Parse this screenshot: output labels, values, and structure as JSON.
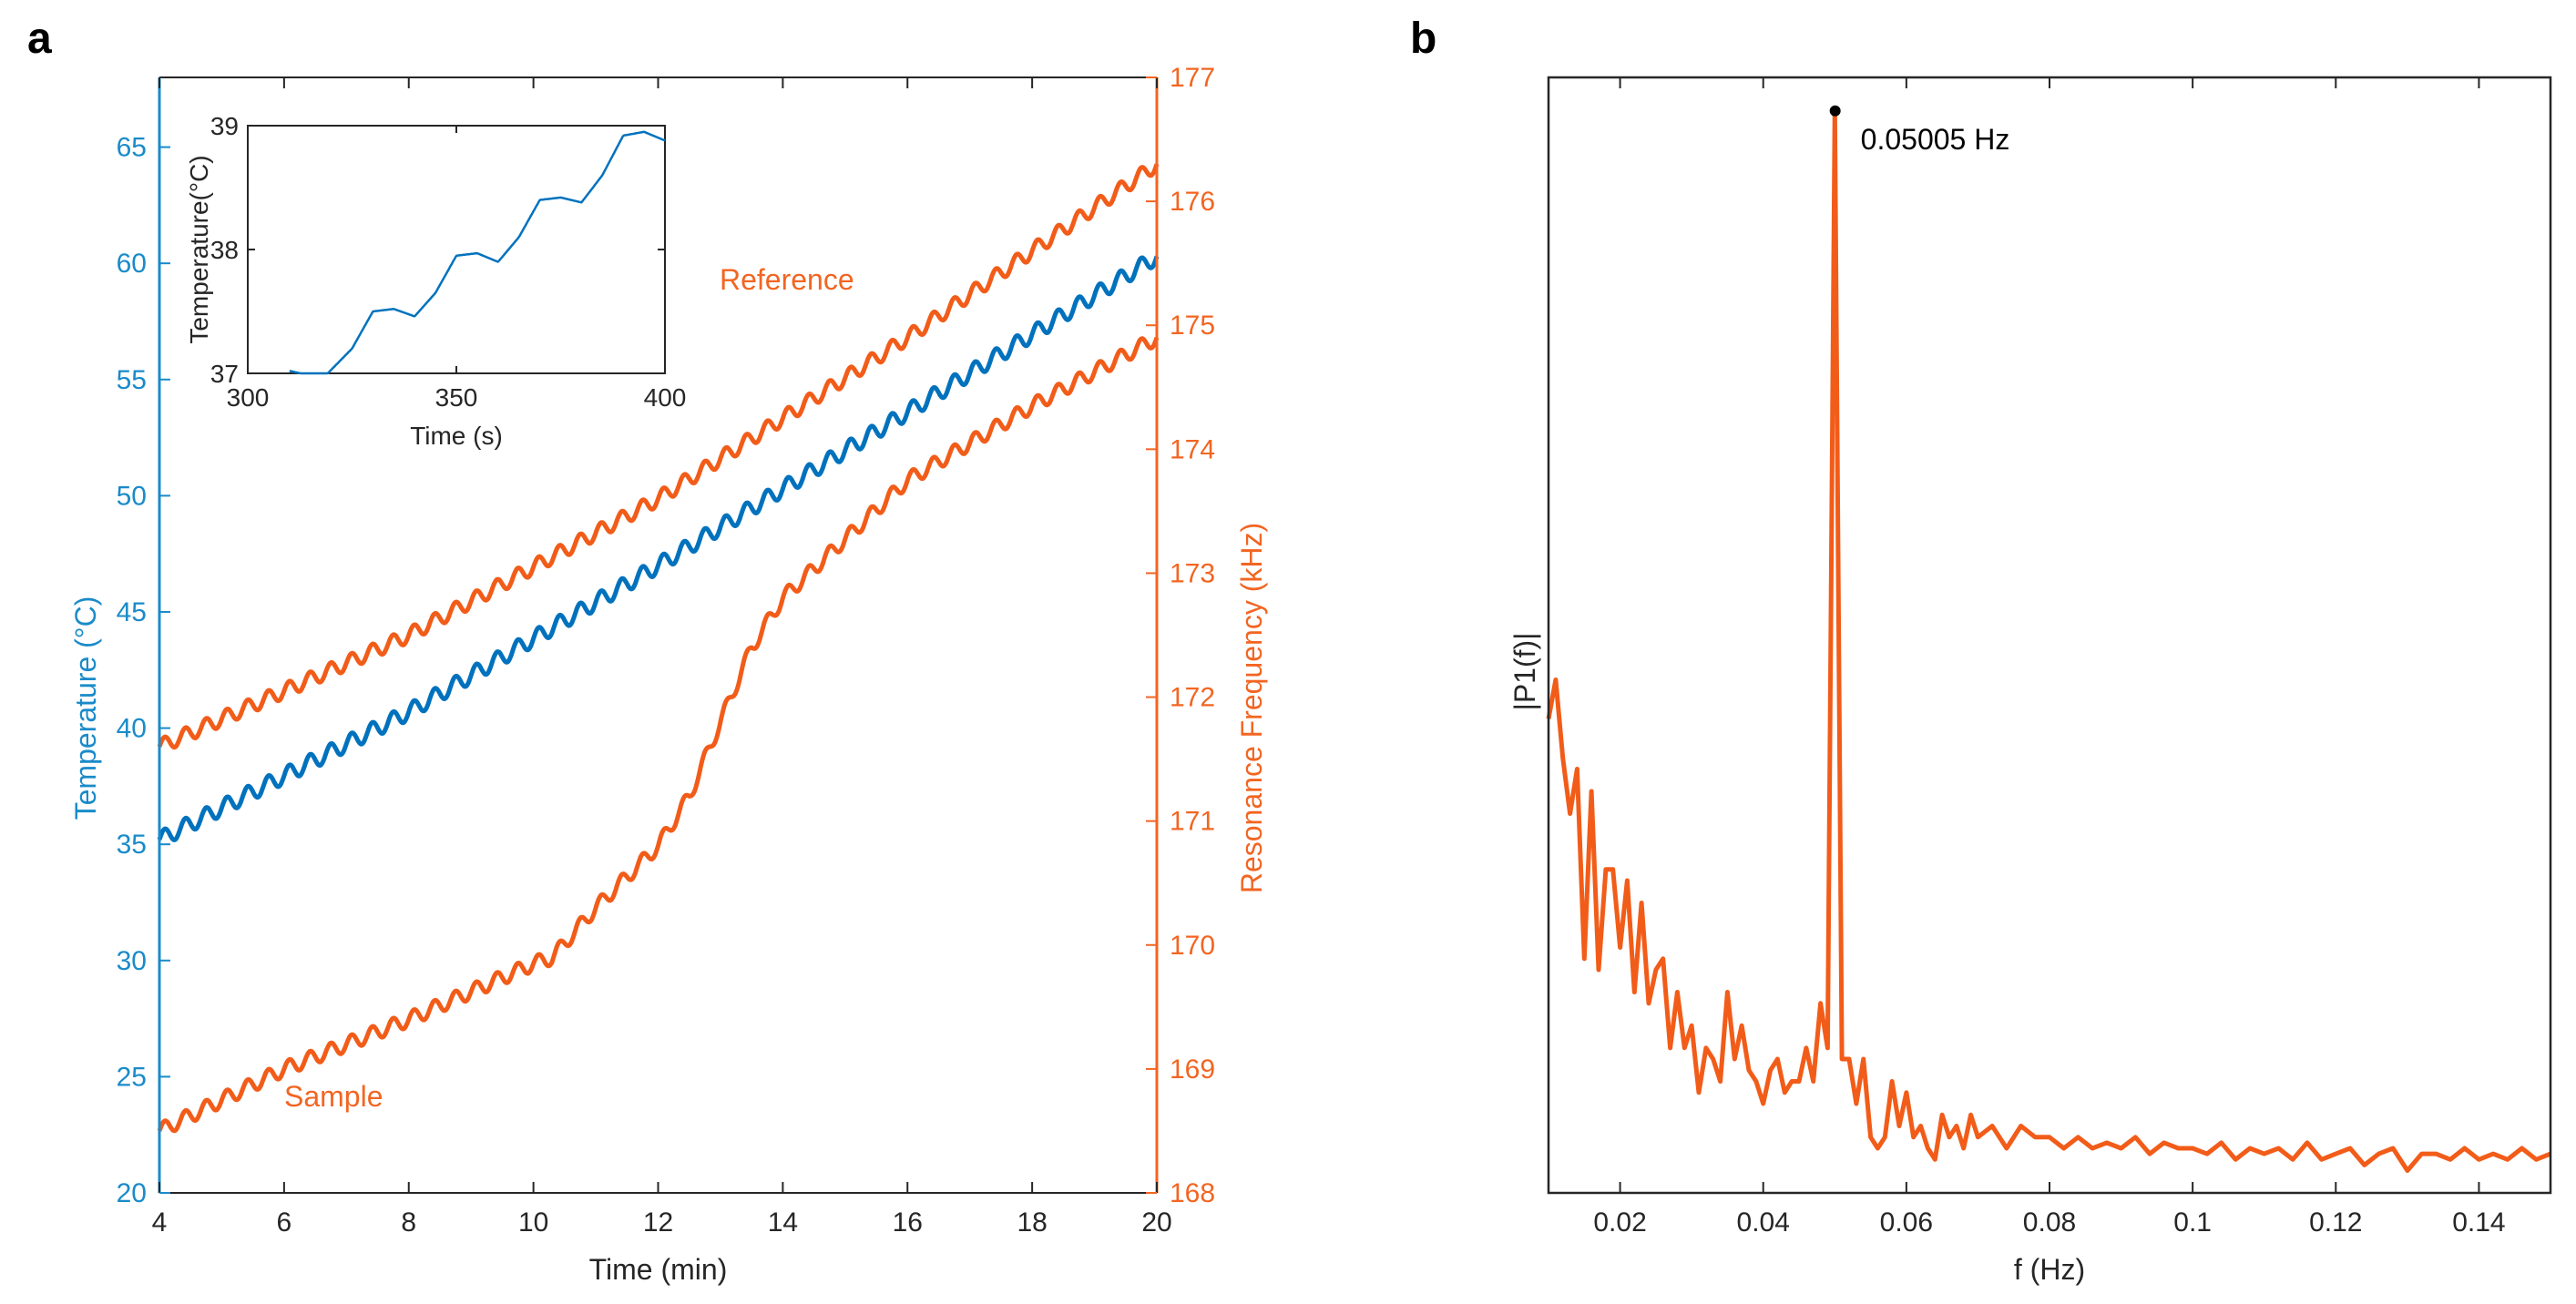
{
  "colors": {
    "blue": "#0072BD",
    "orange": "#F25C19",
    "axis_blue": "#1A8BC9",
    "axis_orange": "#F26522",
    "dark": "#262626"
  },
  "chart_data": [
    {
      "panel": "a",
      "type": "line",
      "xlabel": "Time (min)",
      "ylabel_left": "Temperature (°C)",
      "ylabel_right": "Resonance Frequency (kHz)",
      "xlim": [
        4,
        20
      ],
      "ylim_left": [
        20,
        68
      ],
      "ylim_right": [
        168,
        177
      ],
      "xticks": [
        "4",
        "6",
        "8",
        "10",
        "12",
        "14",
        "16",
        "18",
        "20"
      ],
      "yticks_left": [
        "20",
        "25",
        "30",
        "35",
        "40",
        "45",
        "50",
        "55",
        "60",
        "65"
      ],
      "yticks_right": [
        "168",
        "169",
        "170",
        "171",
        "172",
        "173",
        "174",
        "175",
        "176",
        "177"
      ],
      "annotations": [
        "Reference",
        "Sample"
      ],
      "oscillation_period_s": 20,
      "series": [
        {
          "name": "Temperature",
          "axis": "left",
          "color": "blue",
          "x": [
            4,
            8,
            12,
            16,
            20
          ],
          "y": [
            35.2,
            40.7,
            47.0,
            53.6,
            60.3
          ],
          "ripple_amplitude": 0.35
        },
        {
          "name": "Reference",
          "axis": "right",
          "color": "orange",
          "label": "Reference",
          "x": [
            4,
            8,
            12,
            16,
            20
          ],
          "y": [
            171.6,
            172.5,
            173.6,
            174.9,
            176.3
          ],
          "ripple_amplitude": 0.06
        },
        {
          "name": "Sample",
          "axis": "right",
          "color": "orange",
          "label": "Sample",
          "x": [
            4,
            6,
            8,
            10,
            10.3,
            11.0,
            12.0,
            12.5,
            13.0,
            13.5,
            14.0,
            16.0,
            18.0,
            20.0
          ],
          "y": [
            168.5,
            169.0,
            169.4,
            169.85,
            169.9,
            170.3,
            170.8,
            171.2,
            171.8,
            172.4,
            172.8,
            173.75,
            174.35,
            174.9
          ],
          "ripple_amplitude": 0.06
        }
      ],
      "inset": {
        "type": "line",
        "xlabel": "Time (s)",
        "ylabel": "Temperature(°C)",
        "xlim": [
          300,
          400
        ],
        "ylim": [
          37,
          39
        ],
        "xticks": [
          "300",
          "350",
          "400"
        ],
        "yticks": [
          "37",
          "38",
          "39"
        ],
        "series": [
          {
            "name": "Temperature",
            "color": "blue",
            "x": [
              310,
              318,
              325,
              330,
              335,
              340,
              345,
              350,
              355,
              360,
              365,
              370,
              375,
              380,
              385,
              390,
              395,
              400
            ],
            "y": [
              37.02,
              36.96,
              37.2,
              37.5,
              37.52,
              37.46,
              37.65,
              37.95,
              37.97,
              37.9,
              38.1,
              38.4,
              38.42,
              38.38,
              38.6,
              38.92,
              38.95,
              38.88
            ]
          }
        ]
      }
    },
    {
      "panel": "b",
      "type": "line",
      "xlabel": "f (Hz)",
      "ylabel": "|P1(f)|",
      "xlim": [
        0.01,
        0.15
      ],
      "ylim": [
        0,
        1
      ],
      "xticks": [
        "0.02",
        "0.04",
        "0.06",
        "0.08",
        "0.1",
        "0.12",
        "0.14"
      ],
      "peak": {
        "x": 0.05005,
        "y": 0.97,
        "label": "0.05005 Hz"
      },
      "series": [
        {
          "name": "|P1(f)|",
          "color": "orange",
          "x": [
            0.01,
            0.011,
            0.012,
            0.013,
            0.014,
            0.015,
            0.016,
            0.017,
            0.018,
            0.019,
            0.02,
            0.021,
            0.022,
            0.023,
            0.024,
            0.025,
            0.026,
            0.027,
            0.028,
            0.029,
            0.03,
            0.031,
            0.032,
            0.033,
            0.034,
            0.035,
            0.036,
            0.037,
            0.038,
            0.039,
            0.04,
            0.041,
            0.042,
            0.043,
            0.044,
            0.045,
            0.046,
            0.047,
            0.048,
            0.049,
            0.05,
            0.051,
            0.052,
            0.053,
            0.054,
            0.055,
            0.056,
            0.057,
            0.058,
            0.059,
            0.06,
            0.061,
            0.062,
            0.063,
            0.064,
            0.065,
            0.066,
            0.067,
            0.068,
            0.069,
            0.07,
            0.072,
            0.074,
            0.076,
            0.078,
            0.08,
            0.082,
            0.084,
            0.086,
            0.088,
            0.09,
            0.092,
            0.094,
            0.096,
            0.098,
            0.1,
            0.102,
            0.104,
            0.106,
            0.108,
            0.11,
            0.112,
            0.114,
            0.116,
            0.118,
            0.12,
            0.122,
            0.124,
            0.126,
            0.128,
            0.13,
            0.132,
            0.134,
            0.136,
            0.138,
            0.14,
            0.142,
            0.144,
            0.146,
            0.148,
            0.15
          ],
          "y": [
            0.425,
            0.46,
            0.39,
            0.34,
            0.38,
            0.21,
            0.36,
            0.2,
            0.29,
            0.29,
            0.22,
            0.28,
            0.18,
            0.26,
            0.17,
            0.2,
            0.21,
            0.13,
            0.18,
            0.13,
            0.15,
            0.09,
            0.13,
            0.12,
            0.1,
            0.18,
            0.12,
            0.15,
            0.11,
            0.1,
            0.08,
            0.11,
            0.12,
            0.09,
            0.1,
            0.1,
            0.13,
            0.1,
            0.17,
            0.13,
            0.97,
            0.12,
            0.12,
            0.08,
            0.12,
            0.05,
            0.04,
            0.05,
            0.1,
            0.06,
            0.09,
            0.05,
            0.06,
            0.04,
            0.03,
            0.07,
            0.05,
            0.06,
            0.04,
            0.07,
            0.05,
            0.06,
            0.04,
            0.06,
            0.05,
            0.05,
            0.04,
            0.05,
            0.04,
            0.045,
            0.04,
            0.05,
            0.035,
            0.045,
            0.04,
            0.04,
            0.035,
            0.045,
            0.03,
            0.04,
            0.035,
            0.04,
            0.03,
            0.045,
            0.03,
            0.035,
            0.04,
            0.025,
            0.035,
            0.04,
            0.02,
            0.035,
            0.035,
            0.03,
            0.04,
            0.03,
            0.035,
            0.03,
            0.04,
            0.03,
            0.035
          ]
        }
      ]
    }
  ]
}
